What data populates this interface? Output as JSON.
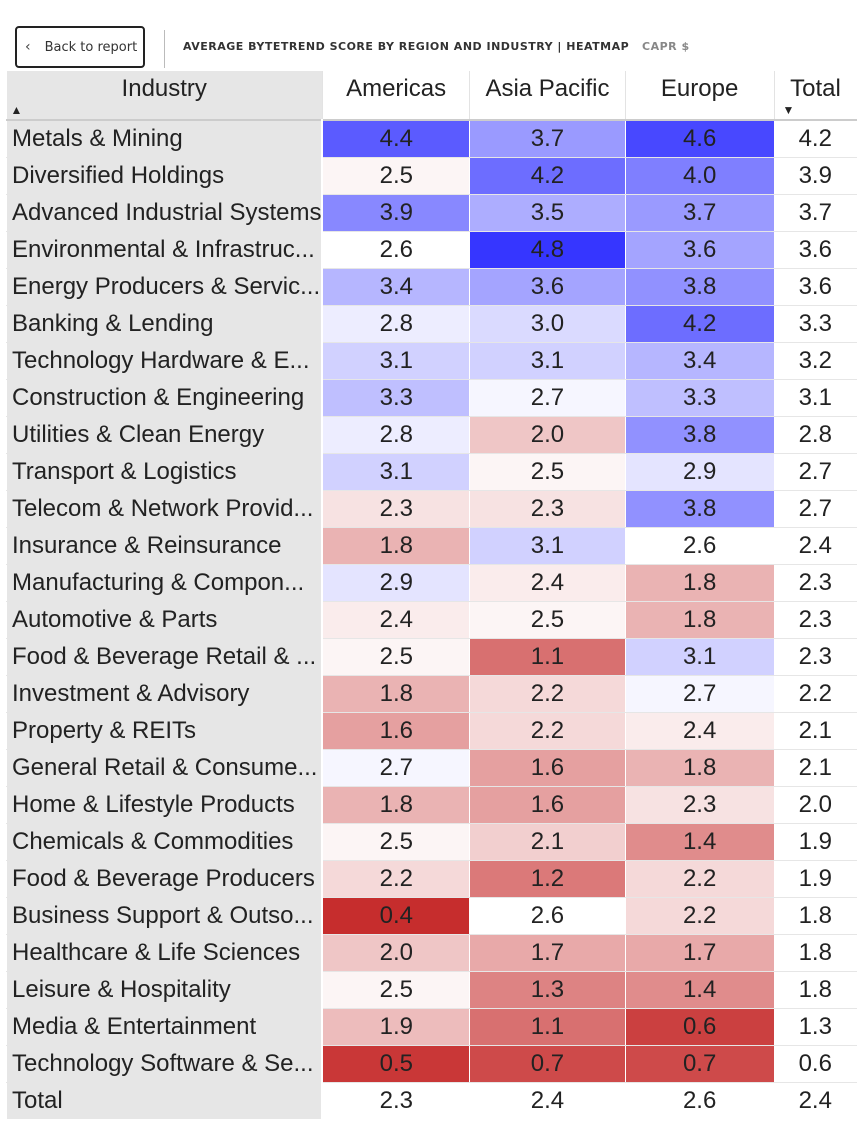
{
  "header": {
    "back_label": "Back to report",
    "title": "AVERAGE BYTETREND SCORE BY REGION AND INDUSTRY | HEATMAP",
    "subtitle": "CAPR $"
  },
  "columns": [
    "Industry",
    "Americas",
    "Asia Pacific",
    "Europe",
    "Total"
  ],
  "sort": {
    "industry": "ascending",
    "total": "descending"
  },
  "color_scale": {
    "low": "#c62d2d",
    "mid": "#ffffff",
    "high": "#3636ff",
    "low_value": 0.4,
    "mid_value": 2.6,
    "high_value": 4.8
  },
  "rows": [
    {
      "industry": "Metals & Mining",
      "values": [
        "4.4",
        "3.7",
        "4.6"
      ],
      "total": "4.2"
    },
    {
      "industry": "Diversified Holdings",
      "values": [
        "2.5",
        "4.2",
        "4.0"
      ],
      "total": "3.9"
    },
    {
      "industry": "Advanced Industrial Systems",
      "values": [
        "3.9",
        "3.5",
        "3.7"
      ],
      "total": "3.7"
    },
    {
      "industry": "Environmental & Infrastruc...",
      "values": [
        "2.6",
        "4.8",
        "3.6"
      ],
      "total": "3.6"
    },
    {
      "industry": "Energy Producers & Servic...",
      "values": [
        "3.4",
        "3.6",
        "3.8"
      ],
      "total": "3.6"
    },
    {
      "industry": "Banking & Lending",
      "values": [
        "2.8",
        "3.0",
        "4.2"
      ],
      "total": "3.3"
    },
    {
      "industry": "Technology Hardware & E...",
      "values": [
        "3.1",
        "3.1",
        "3.4"
      ],
      "total": "3.2"
    },
    {
      "industry": "Construction & Engineering",
      "values": [
        "3.3",
        "2.7",
        "3.3"
      ],
      "total": "3.1"
    },
    {
      "industry": "Utilities & Clean Energy",
      "values": [
        "2.8",
        "2.0",
        "3.8"
      ],
      "total": "2.8"
    },
    {
      "industry": "Transport & Logistics",
      "values": [
        "3.1",
        "2.5",
        "2.9"
      ],
      "total": "2.7"
    },
    {
      "industry": "Telecom & Network Provid...",
      "values": [
        "2.3",
        "2.3",
        "3.8"
      ],
      "total": "2.7"
    },
    {
      "industry": "Insurance & Reinsurance",
      "values": [
        "1.8",
        "3.1",
        "2.6"
      ],
      "total": "2.4"
    },
    {
      "industry": "Manufacturing & Compon...",
      "values": [
        "2.9",
        "2.4",
        "1.8"
      ],
      "total": "2.3"
    },
    {
      "industry": "Automotive & Parts",
      "values": [
        "2.4",
        "2.5",
        "1.8"
      ],
      "total": "2.3"
    },
    {
      "industry": "Food & Beverage Retail & ...",
      "values": [
        "2.5",
        "1.1",
        "3.1"
      ],
      "total": "2.3"
    },
    {
      "industry": "Investment & Advisory",
      "values": [
        "1.8",
        "2.2",
        "2.7"
      ],
      "total": "2.2"
    },
    {
      "industry": "Property & REITs",
      "values": [
        "1.6",
        "2.2",
        "2.4"
      ],
      "total": "2.1"
    },
    {
      "industry": "General Retail & Consume...",
      "values": [
        "2.7",
        "1.6",
        "1.8"
      ],
      "total": "2.1"
    },
    {
      "industry": "Home & Lifestyle Products",
      "values": [
        "1.8",
        "1.6",
        "2.3"
      ],
      "total": "2.0"
    },
    {
      "industry": "Chemicals & Commodities",
      "values": [
        "2.5",
        "2.1",
        "1.4"
      ],
      "total": "1.9"
    },
    {
      "industry": "Food & Beverage Producers",
      "values": [
        "2.2",
        "1.2",
        "2.2"
      ],
      "total": "1.9"
    },
    {
      "industry": "Business Support & Outso...",
      "values": [
        "0.4",
        "2.6",
        "2.2"
      ],
      "total": "1.8"
    },
    {
      "industry": "Healthcare & Life Sciences",
      "values": [
        "2.0",
        "1.7",
        "1.7"
      ],
      "total": "1.8"
    },
    {
      "industry": "Leisure & Hospitality",
      "values": [
        "2.5",
        "1.3",
        "1.4"
      ],
      "total": "1.8"
    },
    {
      "industry": "Media & Entertainment",
      "values": [
        "1.9",
        "1.1",
        "0.6"
      ],
      "total": "1.3"
    },
    {
      "industry": "Technology Software & Se...",
      "values": [
        "0.5",
        "0.7",
        "0.7"
      ],
      "total": "0.6"
    }
  ],
  "total_row": {
    "label": "Total",
    "values": [
      "2.3",
      "2.4",
      "2.6"
    ],
    "total": "2.4"
  }
}
